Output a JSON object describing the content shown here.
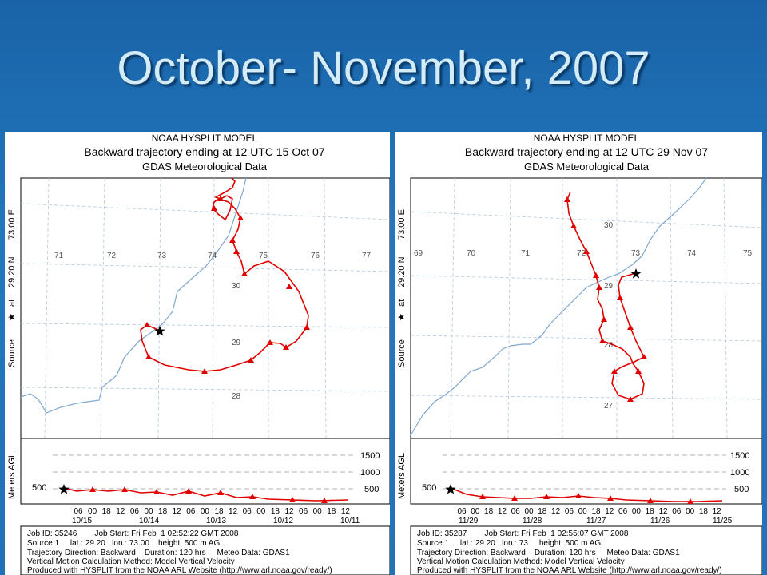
{
  "slide": {
    "title": "October- November, 2007"
  },
  "panels": [
    {
      "header": [
        "NOAA HYSPLIT MODEL",
        "Backward trajectory ending at 12 UTC 15 Oct 07",
        "GDAS Meteorological Data"
      ],
      "side_label": [
        "Source",
        "at",
        "29.20 N",
        "73.00 E"
      ],
      "lon_labels": [
        "71",
        "72",
        "73",
        "74",
        "75",
        "76",
        "77"
      ],
      "lat_labels": [
        "30",
        "29",
        "28"
      ],
      "height_label": "Meters AGL",
      "height_ticks": [
        "1500",
        "1000",
        "500"
      ],
      "height_start": "500",
      "time_ticks": [
        "06",
        "00",
        "18",
        "12",
        "06",
        "00",
        "18",
        "12",
        "06",
        "00",
        "18",
        "12",
        "06",
        "00",
        "18",
        "12",
        "06",
        "00",
        "18",
        "12"
      ],
      "date_labels": [
        "10/15",
        "10/14",
        "10/13",
        "10/12",
        "10/11"
      ],
      "footer": [
        "Job ID: 35246        Job Start: Fri Feb  1 02:52:22 GMT 2008",
        "Source 1     lat.: 29.20   lon.: 73.00    height: 500 m AGL",
        "Trajectory Direction: Backward    Duration: 120 hrs     Meteo Data: GDAS1",
        "Vertical Motion Calculation Method: Model Vertical Velocity",
        "Produced with HYSPLIT from the NOAA ARL Website (http://www.arl.noaa.gov/ready/)"
      ]
    },
    {
      "header": [
        "NOAA HYSPLIT MODEL",
        "Backward trajectory ending at 12 UTC 29 Nov 07",
        "GDAS Meteorological Data"
      ],
      "side_label": [
        "Source",
        "at",
        "29.20 N",
        "73.00 E"
      ],
      "lon_labels": [
        "69",
        "70",
        "71",
        "72",
        "73",
        "74",
        "75"
      ],
      "lat_labels": [
        "30",
        "29",
        "28",
        "27"
      ],
      "height_label": "Meters AGL",
      "height_ticks": [
        "1500",
        "1000",
        "500"
      ],
      "height_start": "500",
      "time_ticks": [
        "06",
        "00",
        "18",
        "12",
        "06",
        "00",
        "18",
        "12",
        "06",
        "00",
        "18",
        "12",
        "06",
        "00",
        "18",
        "12",
        "06",
        "00",
        "18",
        "12"
      ],
      "date_labels": [
        "11/29",
        "11/28",
        "11/27",
        "11/26",
        "11/25"
      ],
      "footer": [
        "Job ID: 35287        Job Start: Fri Feb  1 02:55:07 GMT 2008",
        "Source 1     lat.: 29.20   lon.: 73     height: 500 m AGL",
        "Trajectory Direction: Backward    Duration: 120 hrs     Meteo Data: GDAS1",
        "Vertical Motion Calculation Method: Model Vertical Velocity",
        "Produced with HYSPLIT from the NOAA ARL Website (http://www.arl.noaa.gov/ready/)"
      ]
    }
  ],
  "colors": {
    "trajectory": "#e00000",
    "boundary": "#7fa7d0",
    "grid": "#b5c8dd"
  },
  "icons": {
    "source": "star-icon",
    "endpoint": "triangle-icon"
  }
}
